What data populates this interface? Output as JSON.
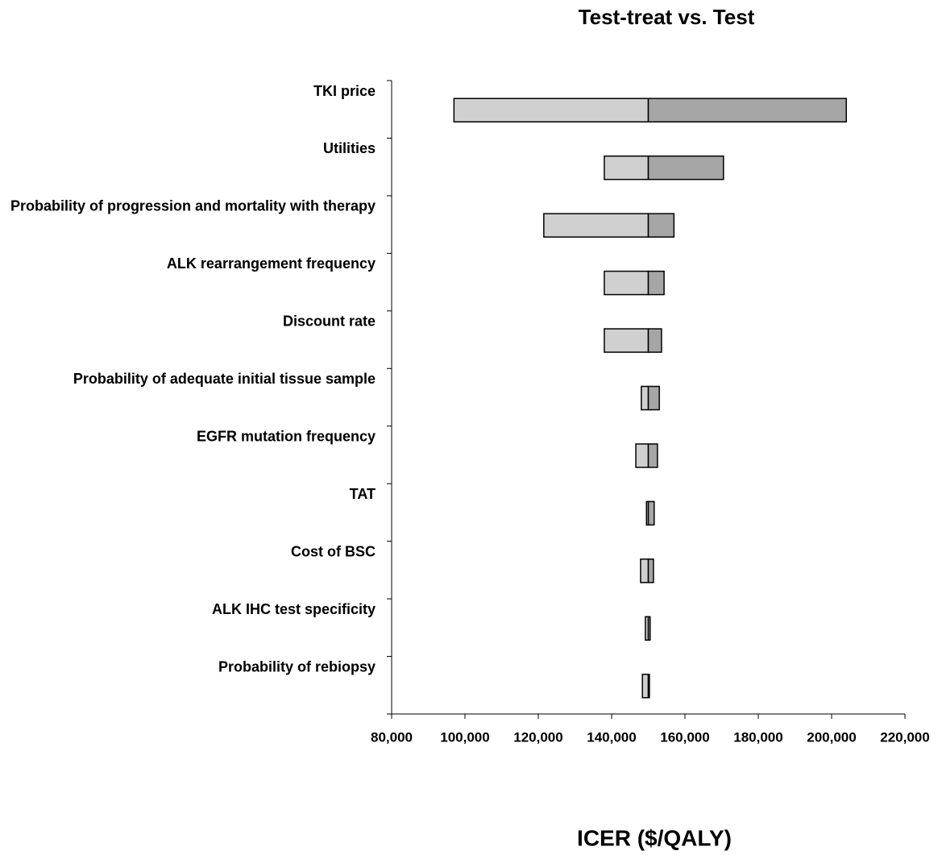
{
  "chart_data": {
    "type": "tornado",
    "title": "Test-treat vs. Test",
    "x_label": "ICER ($/QALY)",
    "categories": [
      "TKI price",
      "Utilities",
      "Probability of progression and mortality with therapy",
      "ALK rearrangement frequency",
      "Discount rate",
      "Probability of adequate initial tissue sample",
      "EGFR mutation frequency",
      "TAT",
      "Cost of BSC",
      "ALK IHC test specificity",
      "Probability of rebiopsy"
    ],
    "base": 150000,
    "low": [
      97000,
      138000,
      121500,
      138000,
      138000,
      148100,
      146600,
      149500,
      147900,
      149200,
      148400
    ],
    "high": [
      204000,
      170500,
      157000,
      154300,
      153600,
      153000,
      152500,
      151600,
      151400,
      150500,
      150300
    ],
    "low_color": "#d0d0d0",
    "high_color": "#a6a6a6",
    "xlim": [
      80000,
      220000
    ],
    "xticks": [
      {
        "value": 80000,
        "label": "80,000"
      },
      {
        "value": 100000,
        "label": "100,000"
      },
      {
        "value": 120000,
        "label": "120,000"
      },
      {
        "value": 140000,
        "label": "140,000"
      },
      {
        "value": 160000,
        "label": "160,000"
      },
      {
        "value": 180000,
        "label": "180,000"
      },
      {
        "value": 200000,
        "label": "200,000"
      },
      {
        "value": 220000,
        "label": "220,000"
      }
    ]
  }
}
